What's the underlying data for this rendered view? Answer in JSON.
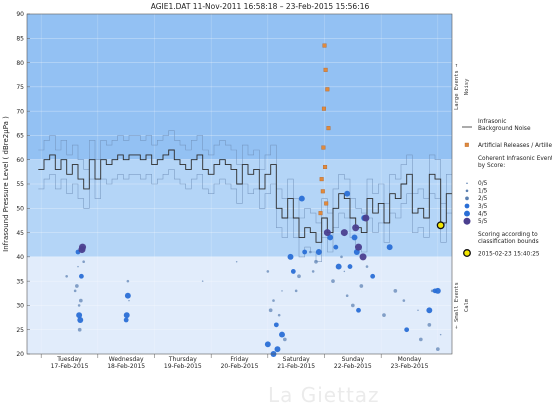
{
  "chart_data": {
    "type": "scatter",
    "title": "AGIE1.DAT   11-Nov-2011 16:58:18   –   23-Feb-2015 15:56:16",
    "ylabel": "Infrasound Pressure Level  ( dBre2µPa )",
    "ylim": [
      20,
      90
    ],
    "xlim": [
      0,
      7.5
    ],
    "grid": true,
    "y_ticks": [
      20,
      25,
      30,
      35,
      40,
      45,
      50,
      55,
      60,
      65,
      70,
      75,
      80,
      85,
      90
    ],
    "days": [
      {
        "name": "Tuesday",
        "date": "17-Feb-2015"
      },
      {
        "name": "Wednesday",
        "date": "18-Feb-2015"
      },
      {
        "name": "Thursday",
        "date": "19-Feb-2015"
      },
      {
        "name": "Friday",
        "date": "20-Feb-2015"
      },
      {
        "name": "Saturday",
        "date": "21-Feb-2015"
      },
      {
        "name": "Sunday",
        "date": "22-Feb-2015"
      },
      {
        "name": "Monday",
        "date": "23-Feb-2015"
      }
    ],
    "bands": [
      {
        "from": 60,
        "to": 90,
        "color": "#93c1f3"
      },
      {
        "from": 40,
        "to": 60,
        "color": "#b4d5f7"
      },
      {
        "from": 20,
        "to": 40,
        "color": "#e1ecfb"
      }
    ],
    "band_labels": [
      {
        "text": "Large Events →",
        "sub": "Noisy",
        "from": 60,
        "to": 90
      },
      {
        "text": "← Small Events",
        "sub": "Calm",
        "from": 20,
        "to": 40
      }
    ],
    "colors": {
      "noise": "#2c2c2c",
      "noise_light": "#6f8fb8",
      "artificial": "#e08a3c",
      "event_dark": "#4b3f8f",
      "event_mid": "#2a6fd6",
      "latest": "#f2e600"
    },
    "background_noise": {
      "name": "Infrasonic Background Noise",
      "x": [
        0,
        0.1,
        0.2,
        0.3,
        0.4,
        0.5,
        0.6,
        0.7,
        0.8,
        0.9,
        1.0,
        1.1,
        1.2,
        1.3,
        1.4,
        1.5,
        1.6,
        1.7,
        1.8,
        1.9,
        2.0,
        2.1,
        2.2,
        2.3,
        2.4,
        2.5,
        2.6,
        2.7,
        2.8,
        2.9,
        3.0,
        3.1,
        3.2,
        3.3,
        3.4,
        3.5,
        3.6,
        3.7,
        3.8,
        3.9,
        4.0,
        4.1,
        4.2,
        4.3,
        4.4,
        4.5,
        4.6,
        4.7,
        4.8,
        4.9,
        5.0,
        5.1,
        5.2,
        5.3,
        5.4,
        5.5,
        5.6,
        5.7,
        5.8,
        5.9,
        6.0,
        6.1,
        6.2,
        6.3,
        6.4,
        6.5,
        6.6,
        6.7,
        6.8,
        6.9,
        7.0,
        7.1,
        7.2
      ],
      "y": [
        58,
        60,
        61,
        58,
        60,
        57,
        59,
        56,
        54,
        60,
        56,
        60,
        59,
        60,
        61,
        60,
        61,
        61,
        60,
        61,
        59,
        60,
        61,
        62,
        60,
        59,
        58,
        60,
        61,
        58,
        57,
        59,
        60,
        59,
        58,
        55,
        59,
        57,
        58,
        54,
        57,
        59,
        50,
        48,
        52,
        48,
        44,
        46,
        45,
        43,
        48,
        45,
        50,
        53,
        52,
        48,
        46,
        45,
        52,
        49,
        51,
        47,
        53,
        52,
        55,
        57,
        49,
        50,
        48,
        57,
        56,
        47,
        53
      ]
    },
    "series": [
      {
        "name": "Artificial Releases / Artillery",
        "marker": "square",
        "points": [
          [
            5.05,
            83.5
          ],
          [
            5.07,
            78.5
          ],
          [
            5.1,
            74.5
          ],
          [
            5.04,
            70.5
          ],
          [
            5.12,
            66.5
          ],
          [
            5.03,
            62.5
          ],
          [
            5.06,
            58.5
          ],
          [
            5.0,
            56.0
          ],
          [
            5.02,
            53.5
          ],
          [
            5.08,
            51.0
          ],
          [
            4.98,
            49.0
          ]
        ]
      },
      {
        "name": "0/5",
        "marker": "dot",
        "size": 1,
        "points": [
          [
            0.7,
            38
          ],
          [
            1.6,
            31
          ],
          [
            2.9,
            35
          ],
          [
            3.5,
            39
          ],
          [
            4.3,
            33
          ],
          [
            5.4,
            37
          ],
          [
            6.7,
            29
          ],
          [
            7.1,
            24
          ]
        ]
      },
      {
        "name": "1/5",
        "marker": "dot",
        "size": 2,
        "points": [
          [
            0.5,
            36
          ],
          [
            0.65,
            33
          ],
          [
            0.72,
            30
          ],
          [
            0.8,
            39
          ],
          [
            1.58,
            35
          ],
          [
            4.05,
            37
          ],
          [
            4.15,
            31
          ],
          [
            4.25,
            28
          ],
          [
            4.55,
            33
          ],
          [
            4.8,
            41
          ],
          [
            4.85,
            37
          ],
          [
            5.35,
            40
          ],
          [
            5.45,
            32
          ],
          [
            5.8,
            38
          ],
          [
            6.45,
            31
          ],
          [
            6.95,
            33
          ]
        ]
      },
      {
        "name": "2/5",
        "marker": "dot",
        "size": 3,
        "points": [
          [
            0.68,
            34
          ],
          [
            0.75,
            31
          ],
          [
            0.73,
            25
          ],
          [
            4.1,
            29
          ],
          [
            4.35,
            23
          ],
          [
            4.6,
            36
          ],
          [
            4.9,
            39
          ],
          [
            5.2,
            35
          ],
          [
            5.55,
            30
          ],
          [
            5.7,
            34
          ],
          [
            6.1,
            28
          ],
          [
            6.3,
            33
          ],
          [
            6.75,
            23
          ],
          [
            6.9,
            26
          ],
          [
            7.05,
            21
          ]
        ]
      },
      {
        "name": "3/5",
        "marker": "dot",
        "size": 4,
        "points": [
          [
            0.7,
            41
          ],
          [
            0.76,
            36
          ],
          [
            1.55,
            27
          ],
          [
            4.2,
            26
          ],
          [
            4.5,
            37
          ],
          [
            4.7,
            41
          ],
          [
            5.25,
            42
          ],
          [
            5.5,
            38
          ],
          [
            5.65,
            29
          ],
          [
            5.9,
            36
          ],
          [
            6.5,
            25
          ],
          [
            7.0,
            33
          ]
        ]
      },
      {
        "name": "4/5",
        "marker": "dot",
        "size": 5,
        "points": [
          [
            0.72,
            28
          ],
          [
            0.74,
            27
          ],
          [
            1.56,
            28
          ],
          [
            1.58,
            32
          ],
          [
            4.05,
            22
          ],
          [
            4.15,
            20
          ],
          [
            4.22,
            21
          ],
          [
            4.3,
            24
          ],
          [
            4.45,
            40
          ],
          [
            4.65,
            52
          ],
          [
            4.95,
            41
          ],
          [
            5.15,
            44
          ],
          [
            5.3,
            38
          ],
          [
            5.45,
            53
          ],
          [
            5.58,
            44
          ],
          [
            5.62,
            41
          ],
          [
            5.75,
            48
          ],
          [
            6.2,
            42
          ],
          [
            6.9,
            29
          ],
          [
            7.05,
            33
          ]
        ]
      },
      {
        "name": "5/5",
        "marker": "dot",
        "size": 6,
        "points": [
          [
            0.77,
            41.5
          ],
          [
            0.78,
            42
          ],
          [
            5.1,
            45
          ],
          [
            5.4,
            45
          ],
          [
            5.6,
            46
          ],
          [
            5.65,
            42
          ],
          [
            5.73,
            40
          ],
          [
            5.78,
            48
          ]
        ]
      },
      {
        "name": "2015-02-23 15:40:25",
        "marker": "latest",
        "points": [
          [
            7.1,
            46.5
          ]
        ]
      }
    ],
    "legend": {
      "placement": "right",
      "noise_label": "Infrasonic Background Noise",
      "artificial_label": "Artificial Releases / Artillery",
      "coherent_label": "Coherent Infrasonic Events, by Score:",
      "scores": [
        "0/5",
        "1/5",
        "2/5",
        "3/5",
        "4/5",
        "5/5"
      ],
      "scoring_note": "Scoring according to classification bounds",
      "latest_label": "2015-02-23 15:40:25"
    }
  }
}
